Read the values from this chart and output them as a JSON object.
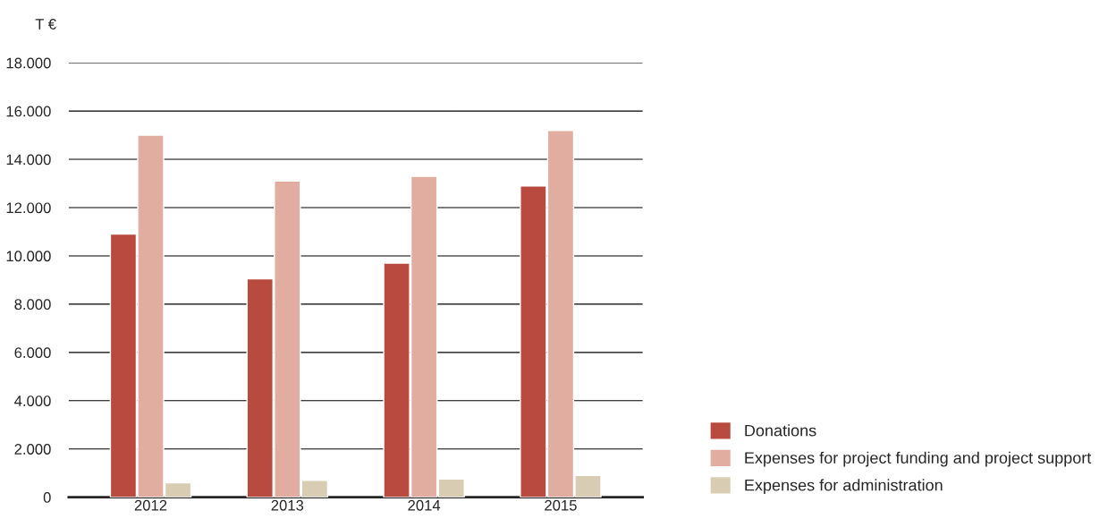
{
  "chart_data": {
    "type": "bar",
    "ylabel": "T €",
    "categories": [
      "2012",
      "2013",
      "2014",
      "2015"
    ],
    "series": [
      {
        "name": "Donations",
        "color": "#b94a3f",
        "values": [
          10900,
          9050,
          9700,
          12900
        ]
      },
      {
        "name": "Expenses for project funding and project support",
        "color": "#e0ada0",
        "values": [
          15000,
          13100,
          13300,
          15200
        ]
      },
      {
        "name": "Expenses for administration",
        "color": "#d8cdb3",
        "values": [
          600,
          700,
          750,
          900
        ]
      }
    ],
    "ylim": [
      0,
      18000
    ],
    "yticks": [
      {
        "value": 0,
        "label": "0"
      },
      {
        "value": 2000,
        "label": "2.000"
      },
      {
        "value": 4000,
        "label": "4.000"
      },
      {
        "value": 6000,
        "label": "6.000"
      },
      {
        "value": 8000,
        "label": "8.000"
      },
      {
        "value": 10000,
        "label": "10.000"
      },
      {
        "value": 12000,
        "label": "12.000"
      },
      {
        "value": 14000,
        "label": "14.000"
      },
      {
        "value": 16000,
        "label": "16.000"
      },
      {
        "value": 18000,
        "label": "18.000"
      }
    ],
    "grid": "y",
    "legend": "bottom right"
  }
}
